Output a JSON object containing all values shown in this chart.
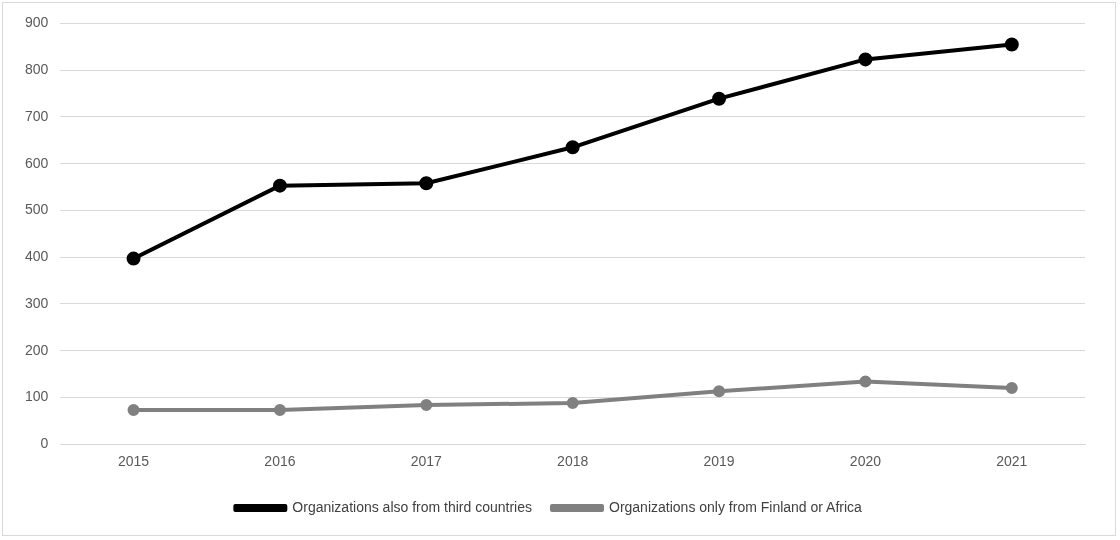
{
  "chart_data": {
    "type": "line",
    "categories": [
      "2015",
      "2016",
      "2017",
      "2018",
      "2019",
      "2020",
      "2021"
    ],
    "series": [
      {
        "name": "Organizations also from third countries",
        "color": "#000000",
        "values": [
          397,
          553,
          558,
          635,
          739,
          823,
          855
        ]
      },
      {
        "name": "Organizations only from Finland or Africa",
        "color": "#808080",
        "values": [
          73,
          73,
          84,
          88,
          113,
          134,
          120
        ]
      }
    ],
    "ylim": [
      0,
      900
    ],
    "yticks": [
      0,
      100,
      200,
      300,
      400,
      500,
      600,
      700,
      800,
      900
    ],
    "grid": "y",
    "legend": "bottom",
    "marker": "circle",
    "line_style": "solid"
  }
}
